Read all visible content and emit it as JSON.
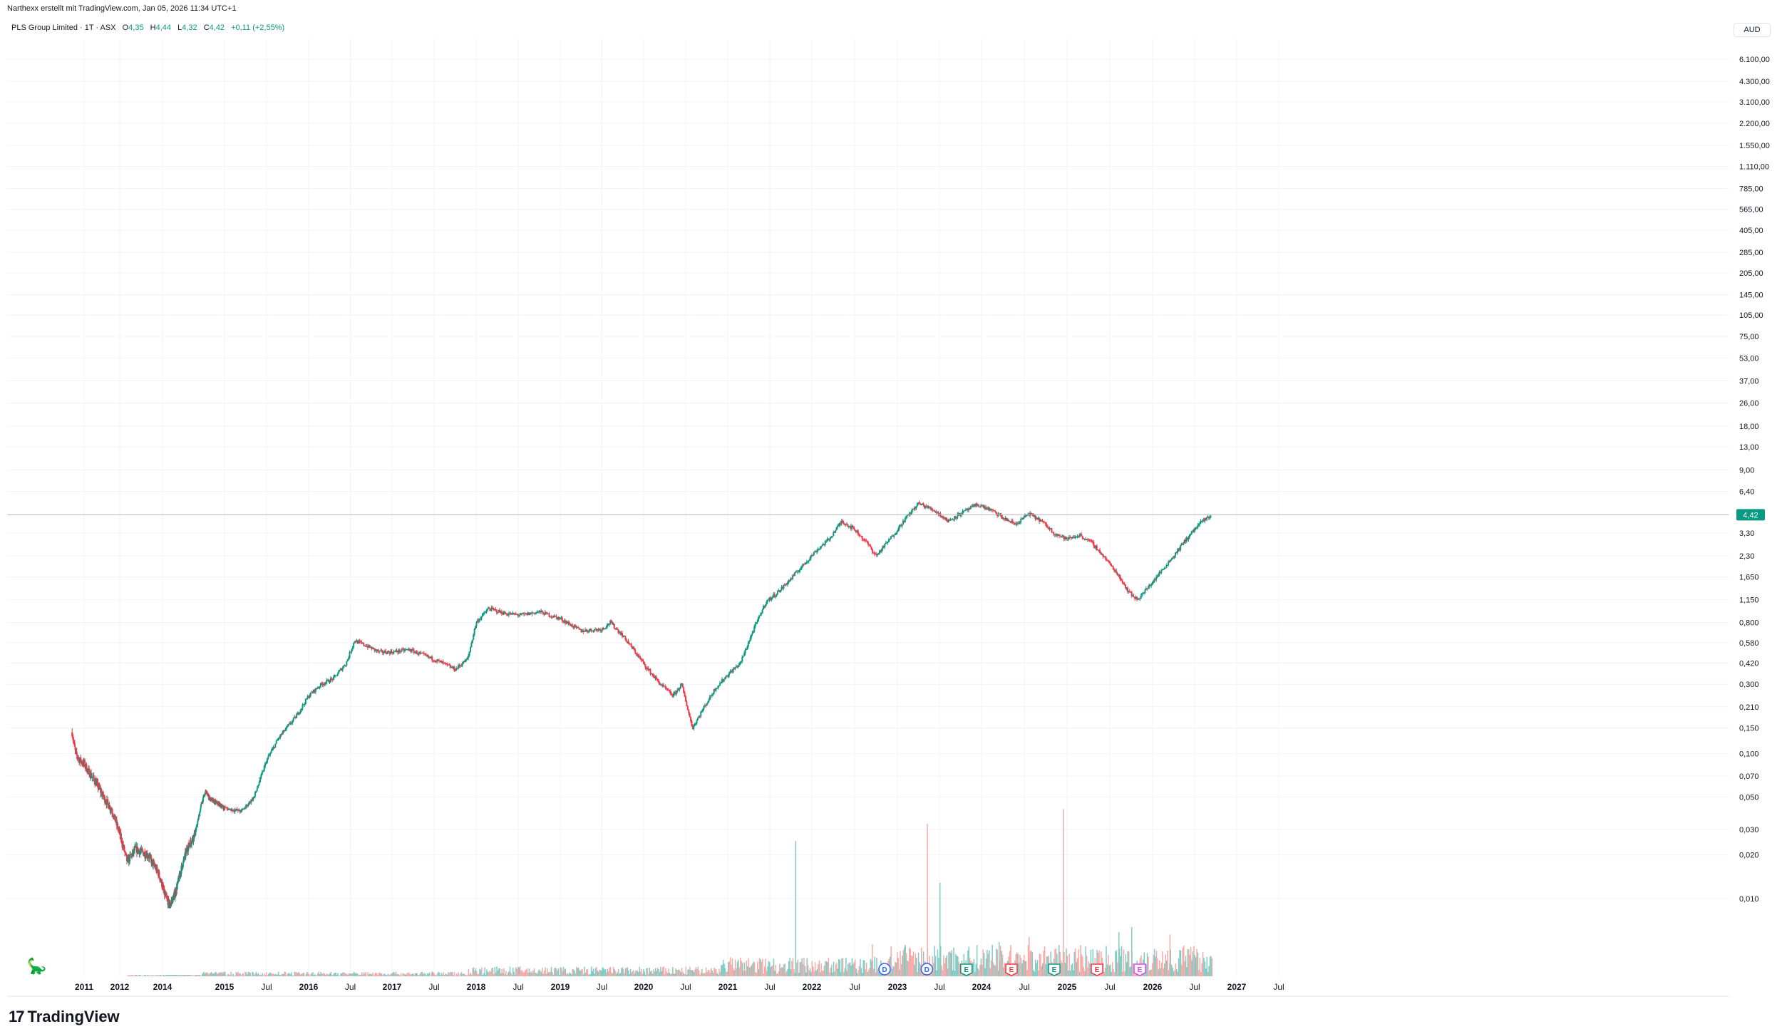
{
  "header": {
    "published_by": "Narthexx erstellt mit TradingView.com, Jan 05, 2026 11:34 UTC+1"
  },
  "legend": {
    "symbol": "PLS Group Limited · 1T · ASX",
    "open_label": "O",
    "open": "4,35",
    "high_label": "H",
    "high": "4,44",
    "low_label": "L",
    "low": "4,32",
    "close_label": "C",
    "close": "4,42",
    "change": "+0,11 (+2,55%)"
  },
  "currency_button": "AUD",
  "brand": {
    "logo": "17",
    "name": "TradingView"
  },
  "colors": {
    "up": "#089981",
    "down": "#f23645",
    "up_volume": "#80cbc4",
    "down_volume": "#f7a9a7",
    "grid": "#f0f3fa",
    "price_line": "#b2b5be",
    "price_tag": "#089981",
    "dividend": "#2962ff",
    "earnings_pos": "#089981",
    "earnings_neg": "#f23645",
    "earnings_future": "#e040fb"
  },
  "chart_data": {
    "type": "candlestick",
    "scale": "log",
    "y_axis_labels": [
      "6.100,00",
      "4.300,00",
      "3.100,00",
      "2.200,00",
      "1.550,00",
      "1.110,00",
      "785,00",
      "565,00",
      "405,00",
      "285,00",
      "205,00",
      "145,00",
      "105,00",
      "75,00",
      "53,00",
      "37,00",
      "26,00",
      "18,00",
      "13,00",
      "9,00",
      "6,40",
      "3,30",
      "2,30",
      "1,650",
      "1,150",
      "0,800",
      "0,580",
      "0,420",
      "0,300",
      "0,210",
      "0,150",
      "0,100",
      "0,070",
      "0,050",
      "0,030",
      "0,020",
      "0,010"
    ],
    "y_axis_values": [
      6100,
      4300,
      3100,
      2200,
      1550,
      1110,
      785,
      565,
      405,
      285,
      205,
      145,
      105,
      75,
      53,
      37,
      26,
      18,
      13,
      9,
      6.4,
      3.3,
      2.3,
      1.65,
      1.15,
      0.8,
      0.58,
      0.42,
      0.3,
      0.21,
      0.15,
      0.1,
      0.07,
      0.05,
      0.03,
      0.02,
      0.01
    ],
    "x_axis_labels": [
      {
        "label": "2011",
        "t": 2011.0,
        "bold": true
      },
      {
        "label": "2012",
        "t": 2011.82,
        "bold": true
      },
      {
        "label": "2014",
        "t": 2012.85,
        "bold": true
      },
      {
        "label": "2015",
        "t": 2015.0,
        "bold": true
      },
      {
        "label": "Jul",
        "t": 2015.5,
        "bold": false
      },
      {
        "label": "2016",
        "t": 2016.0,
        "bold": true
      },
      {
        "label": "Jul",
        "t": 2016.5,
        "bold": false
      },
      {
        "label": "2017",
        "t": 2017.0,
        "bold": true
      },
      {
        "label": "Jul",
        "t": 2017.5,
        "bold": false
      },
      {
        "label": "2018",
        "t": 2018.0,
        "bold": true
      },
      {
        "label": "Jul",
        "t": 2018.5,
        "bold": false
      },
      {
        "label": "2019",
        "t": 2019.0,
        "bold": true
      },
      {
        "label": "Jul",
        "t": 2019.5,
        "bold": false
      },
      {
        "label": "2020",
        "t": 2020.0,
        "bold": true
      },
      {
        "label": "Jul",
        "t": 2020.5,
        "bold": false
      },
      {
        "label": "2021",
        "t": 2021.0,
        "bold": true
      },
      {
        "label": "Jul",
        "t": 2021.5,
        "bold": false
      },
      {
        "label": "2022",
        "t": 2022.0,
        "bold": true
      },
      {
        "label": "Jul",
        "t": 2022.5,
        "bold": false
      },
      {
        "label": "2023",
        "t": 2023.0,
        "bold": true
      },
      {
        "label": "Jul",
        "t": 2023.5,
        "bold": false
      },
      {
        "label": "2024",
        "t": 2024.0,
        "bold": true
      },
      {
        "label": "Jul",
        "t": 2024.5,
        "bold": false
      },
      {
        "label": "2025",
        "t": 2025.0,
        "bold": true
      },
      {
        "label": "Jul",
        "t": 2025.5,
        "bold": false
      },
      {
        "label": "2026",
        "t": 2026.0,
        "bold": true
      },
      {
        "label": "Jul",
        "t": 2026.5,
        "bold": false
      },
      {
        "label": "2027",
        "t": 2027.0,
        "bold": true
      },
      {
        "label": "Jul",
        "t": 2027.5,
        "bold": false
      }
    ],
    "last_price": 4.42,
    "last_price_label": "4,42",
    "price_path": [
      [
        2010.72,
        0.14
      ],
      [
        2010.8,
        0.1
      ],
      [
        2010.9,
        0.09
      ],
      [
        2011.0,
        0.085
      ],
      [
        2011.1,
        0.075
      ],
      [
        2011.25,
        0.065
      ],
      [
        2011.45,
        0.05
      ],
      [
        2011.65,
        0.04
      ],
      [
        2011.82,
        0.028
      ],
      [
        2012.0,
        0.018
      ],
      [
        2012.2,
        0.022
      ],
      [
        2012.5,
        0.02
      ],
      [
        2012.75,
        0.015
      ],
      [
        2012.9,
        0.011
      ],
      [
        2013.1,
        0.009
      ],
      [
        2013.3,
        0.011
      ],
      [
        2013.5,
        0.016
      ],
      [
        2013.7,
        0.022
      ],
      [
        2013.85,
        0.025
      ],
      [
        2014.0,
        0.029
      ],
      [
        2014.2,
        0.045
      ],
      [
        2014.35,
        0.055
      ],
      [
        2014.45,
        0.05
      ],
      [
        2014.6,
        0.047
      ],
      [
        2014.8,
        0.045
      ],
      [
        2015.0,
        0.042
      ],
      [
        2015.2,
        0.04
      ],
      [
        2015.35,
        0.05
      ],
      [
        2015.5,
        0.09
      ],
      [
        2015.65,
        0.13
      ],
      [
        2015.85,
        0.18
      ],
      [
        2016.0,
        0.25
      ],
      [
        2016.15,
        0.3
      ],
      [
        2016.3,
        0.33
      ],
      [
        2016.45,
        0.42
      ],
      [
        2016.55,
        0.6
      ],
      [
        2016.7,
        0.55
      ],
      [
        2016.85,
        0.5
      ],
      [
        2017.0,
        0.5
      ],
      [
        2017.2,
        0.52
      ],
      [
        2017.4,
        0.47
      ],
      [
        2017.6,
        0.42
      ],
      [
        2017.75,
        0.38
      ],
      [
        2017.9,
        0.45
      ],
      [
        2018.0,
        0.8
      ],
      [
        2018.15,
        1.0
      ],
      [
        2018.35,
        0.92
      ],
      [
        2018.55,
        0.9
      ],
      [
        2018.75,
        0.95
      ],
      [
        2019.0,
        0.85
      ],
      [
        2019.25,
        0.7
      ],
      [
        2019.5,
        0.72
      ],
      [
        2019.6,
        0.8
      ],
      [
        2019.75,
        0.65
      ],
      [
        2019.9,
        0.5
      ],
      [
        2020.05,
        0.38
      ],
      [
        2020.2,
        0.3
      ],
      [
        2020.35,
        0.25
      ],
      [
        2020.45,
        0.3
      ],
      [
        2020.58,
        0.15
      ],
      [
        2020.7,
        0.2
      ],
      [
        2020.85,
        0.28
      ],
      [
        2021.0,
        0.35
      ],
      [
        2021.15,
        0.42
      ],
      [
        2021.3,
        0.7
      ],
      [
        2021.45,
        1.1
      ],
      [
        2021.6,
        1.3
      ],
      [
        2021.75,
        1.6
      ],
      [
        2021.9,
        2.0
      ],
      [
        2022.05,
        2.5
      ],
      [
        2022.2,
        3.0
      ],
      [
        2022.35,
        4.0
      ],
      [
        2022.5,
        3.5
      ],
      [
        2022.65,
        2.8
      ],
      [
        2022.75,
        2.3
      ],
      [
        2022.95,
        3.2
      ],
      [
        2023.1,
        4.2
      ],
      [
        2023.25,
        5.3
      ],
      [
        2023.45,
        4.7
      ],
      [
        2023.6,
        4.0
      ],
      [
        2023.75,
        4.5
      ],
      [
        2023.95,
        5.2
      ],
      [
        2024.1,
        4.8
      ],
      [
        2024.25,
        4.2
      ],
      [
        2024.4,
        3.8
      ],
      [
        2024.55,
        4.5
      ],
      [
        2024.7,
        4.0
      ],
      [
        2024.85,
        3.3
      ],
      [
        2025.0,
        3.0
      ],
      [
        2025.15,
        3.2
      ],
      [
        2025.3,
        2.8
      ],
      [
        2025.45,
        2.2
      ],
      [
        2025.6,
        1.7
      ],
      [
        2025.72,
        1.3
      ],
      [
        2025.82,
        1.15
      ],
      [
        2025.95,
        1.4
      ],
      [
        2026.1,
        1.8
      ],
      [
        2026.25,
        2.3
      ],
      [
        2026.4,
        3.0
      ],
      [
        2026.55,
        3.8
      ],
      [
        2026.7,
        4.42
      ]
    ],
    "volume_spikes": [
      [
        2021.8,
        0.55,
        "up"
      ],
      [
        2022.7,
        0.13,
        "down"
      ],
      [
        2023.35,
        0.62,
        "down"
      ],
      [
        2023.5,
        0.38,
        "up"
      ],
      [
        2024.2,
        0.14,
        "up"
      ],
      [
        2024.55,
        0.16,
        "down"
      ],
      [
        2024.95,
        0.68,
        "down"
      ],
      [
        2025.6,
        0.18,
        "up"
      ],
      [
        2025.75,
        0.2,
        "up"
      ],
      [
        2026.2,
        0.17,
        "down"
      ]
    ],
    "event_markers": [
      {
        "label": "D",
        "t": 2022.85,
        "type": "dividend"
      },
      {
        "label": "D",
        "t": 2023.35,
        "type": "dividend"
      },
      {
        "label": "E",
        "t": 2023.82,
        "type": "earnings_pos"
      },
      {
        "label": "E",
        "t": 2024.35,
        "type": "earnings_neg"
      },
      {
        "label": "E",
        "t": 2024.85,
        "type": "earnings_pos"
      },
      {
        "label": "E",
        "t": 2025.35,
        "type": "earnings_neg"
      },
      {
        "label": "E",
        "t": 2025.85,
        "type": "earnings_future"
      }
    ]
  }
}
